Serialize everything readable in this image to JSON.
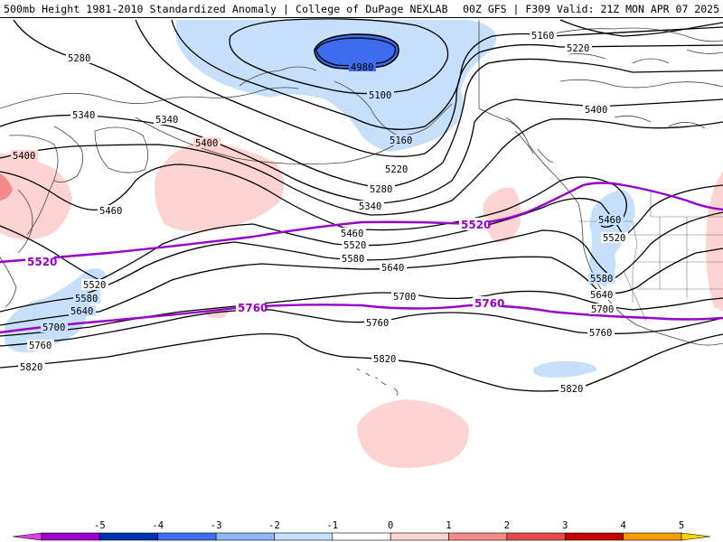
{
  "header": {
    "title_left": "500mb Height 1981-2010 Standardized Anomaly | College of DuPage NEXLAB",
    "title_right": "00Z GFS | F309 Valid: 21Z MON APR 07 2025"
  },
  "colors": {
    "anom_neg_3": "#3f6bf0",
    "anom_neg_1": "#c6e0fb",
    "anom_pos_1": "#fdd3d3",
    "anom_pos_2": "#f58a8a",
    "contour": "#000000",
    "highlight_contour": "#9900cc",
    "coastline": "#444444"
  },
  "contours": [
    {
      "value": "4980"
    },
    {
      "value": "5100"
    },
    {
      "value": "5160"
    },
    {
      "value": "5220"
    },
    {
      "value": "5280"
    },
    {
      "value": "5340"
    },
    {
      "value": "5400"
    },
    {
      "value": "5460"
    },
    {
      "value": "5520"
    },
    {
      "value": "5580"
    },
    {
      "value": "5640"
    },
    {
      "value": "5700"
    },
    {
      "value": "5760"
    },
    {
      "value": "5820"
    }
  ],
  "highlight_labels": [
    "5520",
    "5760"
  ],
  "colorbar": {
    "ticks": [
      "-5",
      "-4",
      "-3",
      "-2",
      "-1",
      "0",
      "1",
      "2",
      "3",
      "4",
      "5"
    ],
    "segments": [
      "#9900cc",
      "#0033b3",
      "#3f6bf0",
      "#8fb6f6",
      "#c6e0fb",
      "#ffffff",
      "#fdd3d3",
      "#f58a8a",
      "#e84a4a",
      "#c40000",
      "#f59b00"
    ],
    "left_tip": "#e040e0",
    "right_tip": "#ffd200"
  }
}
